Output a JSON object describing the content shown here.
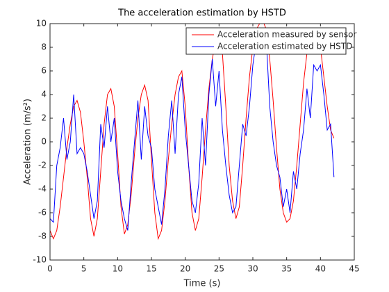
{
  "chart_data": {
    "type": "line",
    "title": "The acceleration estimation by HSTD",
    "x_label": "Time (s)",
    "y_label": "Acceleration (m/s²)",
    "x": [
      0,
      0.5,
      1,
      1.5,
      2,
      2.5,
      3,
      3.5,
      4,
      4.5,
      5,
      5.5,
      6,
      6.5,
      7,
      7.5,
      8,
      8.5,
      9,
      9.5,
      10,
      10.5,
      11,
      11.5,
      12,
      12.5,
      13,
      13.5,
      14,
      14.5,
      15,
      15.5,
      16,
      16.5,
      17,
      17.5,
      18,
      18.5,
      19,
      19.5,
      20,
      20.5,
      21,
      21.5,
      22,
      22.5,
      23,
      23.5,
      24,
      24.5,
      25,
      25.5,
      26,
      26.5,
      27,
      27.5,
      28,
      28.5,
      29,
      29.5,
      30,
      30.5,
      31,
      31.5,
      32,
      32.5,
      33,
      33.5,
      34,
      34.5,
      35,
      35.5,
      36,
      36.5,
      37,
      37.5,
      38,
      38.5,
      39,
      39.5,
      40,
      40.5,
      41,
      41.5,
      42
    ],
    "series": [
      {
        "name": "Acceleration measured by sensor",
        "color": "#ff0000",
        "values": [
          -7.5,
          -8.2,
          -7.5,
          -5.5,
          -3,
          -0.5,
          1.5,
          3,
          3.5,
          2.5,
          0,
          -3,
          -6.5,
          -8,
          -6.5,
          -2.5,
          1.5,
          4,
          4.5,
          3,
          -1,
          -5.5,
          -7.8,
          -7,
          -4.5,
          -1,
          2,
          4,
          4.8,
          3.5,
          -1.5,
          -6,
          -8.2,
          -7.5,
          -5,
          -1.5,
          1.5,
          4,
          5.5,
          6,
          3,
          -2,
          -6,
          -7.5,
          -6.5,
          -3,
          1,
          4.5,
          7,
          8.5,
          9.5,
          7.5,
          3,
          -2,
          -5,
          -6.5,
          -5.5,
          -2,
          2,
          5.5,
          8,
          9.5,
          10,
          10.2,
          9.5,
          7,
          3.5,
          -0.5,
          -4,
          -6,
          -6.8,
          -6.5,
          -5,
          -2,
          1.5,
          5,
          7.5,
          9,
          9.5,
          9.2,
          8,
          5.5,
          3,
          1,
          0.3
        ]
      },
      {
        "name": "Acceleration estimated by HSTD",
        "color": "#0000ff",
        "values": [
          -6.5,
          -6.8,
          -2,
          -0.5,
          2,
          -1.5,
          0,
          4,
          -1,
          -0.5,
          -1,
          -2.5,
          -4.5,
          -6.5,
          -5,
          1.5,
          -0.5,
          3,
          0,
          2,
          -2.5,
          -5,
          -6.5,
          -7.5,
          -3.5,
          0,
          3.5,
          -1.5,
          3,
          0.5,
          -0.5,
          -4,
          -5.5,
          -7,
          -4,
          0.5,
          3.5,
          -1,
          4,
          5.5,
          1,
          -2,
          -5,
          -6,
          -3.5,
          2,
          -2,
          4,
          7,
          3,
          6,
          1,
          -2,
          -4.5,
          -6,
          -5.5,
          -2,
          1.5,
          0.5,
          3,
          6.5,
          8.5,
          8,
          8.5,
          8.5,
          3,
          0,
          -2,
          -3,
          -5.5,
          -4,
          -6,
          -2.5,
          -4,
          -1,
          1,
          4.5,
          2,
          6.5,
          6,
          6.5,
          4,
          1,
          1.5,
          -3
        ]
      }
    ],
    "xlim": [
      0,
      45
    ],
    "xticks": [
      0,
      5,
      10,
      15,
      20,
      25,
      30,
      35,
      40,
      45
    ],
    "ylim": [
      -10,
      10
    ],
    "yticks": [
      -10,
      -8,
      -6,
      -4,
      -2,
      0,
      2,
      4,
      6,
      8,
      10
    ],
    "grid": false,
    "legend": "northeast"
  }
}
